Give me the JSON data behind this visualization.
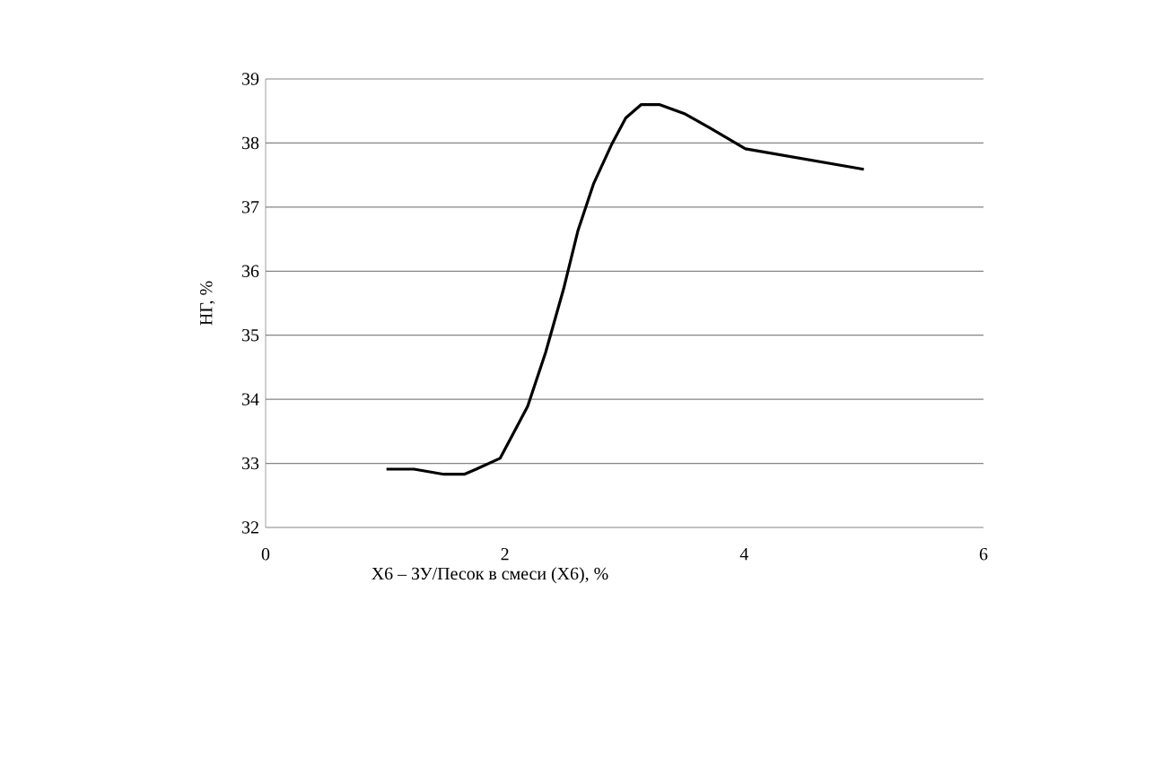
{
  "chart_data": {
    "type": "line",
    "xlabel": "X6 – ЗУ/Песок в смеси (X6), %",
    "ylabel": "НГ, %",
    "series": [
      {
        "color": "#000000",
        "x": [
          1.01,
          1.24,
          1.49,
          1.66,
          1.76,
          1.96,
          2.06,
          2.19,
          2.34,
          2.49,
          2.61,
          2.74,
          2.89,
          3.01,
          3.14,
          3.29,
          3.51,
          3.71,
          4.01,
          5.0
        ],
        "values": [
          32.91,
          32.91,
          32.83,
          32.83,
          32.91,
          33.08,
          33.43,
          33.89,
          34.73,
          35.72,
          36.63,
          37.36,
          37.97,
          38.39,
          38.6,
          38.6,
          38.45,
          38.24,
          37.91,
          37.59
        ]
      }
    ],
    "xlim": [
      0,
      6
    ],
    "xticks": [
      0,
      2,
      4,
      6
    ],
    "ylim": [
      32,
      39
    ],
    "yticks": [
      32,
      33,
      34,
      35,
      36,
      37,
      38,
      39
    ],
    "grid": "y",
    "legend": false,
    "marker": "none",
    "line_style": "solid"
  }
}
